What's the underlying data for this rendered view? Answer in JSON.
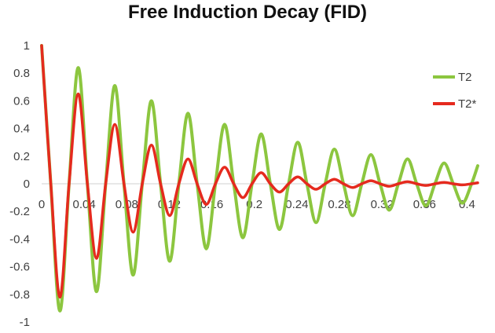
{
  "chart_data": {
    "type": "line",
    "title": "Free Induction Decay (FID)",
    "xlabel": "",
    "ylabel": "",
    "xlim": [
      0,
      0.41
    ],
    "ylim": [
      -1,
      1
    ],
    "x_ticks": [
      "0",
      "0.04",
      "0.08",
      "0.12",
      "0.16",
      "0.2",
      "0.24",
      "0.28",
      "0.32",
      "0.36",
      "0.4"
    ],
    "y_ticks": [
      "1",
      "0.8",
      "0.6",
      "0.4",
      "0.2",
      "0",
      "-0.2",
      "-0.4",
      "-0.6",
      "-0.8",
      "-1"
    ],
    "grid": false,
    "legend_position": "right",
    "series": [
      {
        "name": "T2",
        "color": "#8cc63f",
        "x": [
          0,
          0.0086,
          0.0172,
          0.0258,
          0.0344,
          0.043,
          0.0516,
          0.0602,
          0.0688,
          0.0774,
          0.086,
          0.0946,
          0.1032,
          0.1118,
          0.1204,
          0.129,
          0.1376,
          0.1462,
          0.1548,
          0.1634,
          0.172,
          0.1806,
          0.1892,
          0.1978,
          0.2064,
          0.215,
          0.2236,
          0.2322,
          0.2408,
          0.2494,
          0.258,
          0.2666,
          0.2752,
          0.2838,
          0.2924,
          0.301,
          0.3096,
          0.3182,
          0.3268,
          0.3354,
          0.344,
          0.3526,
          0.3612,
          0.3698,
          0.3784,
          0.387,
          0.3956,
          0.4042,
          0.41
        ],
        "y": [
          1.0,
          0.0,
          -0.92,
          0.0,
          0.84,
          0.0,
          -0.78,
          0.0,
          0.71,
          0.0,
          -0.66,
          0.0,
          0.6,
          0.0,
          -0.56,
          0.0,
          0.51,
          0.0,
          -0.47,
          0.0,
          0.43,
          0.0,
          -0.39,
          0.0,
          0.36,
          0.0,
          -0.33,
          0.0,
          0.3,
          0.0,
          -0.28,
          0.0,
          0.25,
          0.0,
          -0.23,
          0.0,
          0.21,
          0.0,
          -0.19,
          0.0,
          0.18,
          0.0,
          -0.16,
          0.0,
          0.15,
          0.0,
          -0.14,
          0.0,
          0.13
        ]
      },
      {
        "name": "T2*",
        "color": "#e52a1e",
        "x": [
          0,
          0.0086,
          0.0172,
          0.0258,
          0.0344,
          0.043,
          0.0516,
          0.0602,
          0.0688,
          0.0774,
          0.086,
          0.0946,
          0.1032,
          0.1118,
          0.1204,
          0.129,
          0.1376,
          0.1462,
          0.1548,
          0.1634,
          0.172,
          0.1806,
          0.1892,
          0.1978,
          0.2064,
          0.215,
          0.2236,
          0.2322,
          0.2408,
          0.2494,
          0.258,
          0.2666,
          0.2752,
          0.2838,
          0.2924,
          0.301,
          0.3096,
          0.3182,
          0.3268,
          0.3354,
          0.344,
          0.3526,
          0.3612,
          0.3698,
          0.3784,
          0.387,
          0.3956,
          0.4042,
          0.41
        ],
        "y": [
          1.0,
          0.0,
          -0.82,
          0.0,
          0.65,
          0.0,
          -0.54,
          0.0,
          0.43,
          0.0,
          -0.35,
          0.0,
          0.28,
          0.0,
          -0.23,
          0.0,
          0.18,
          0.0,
          -0.15,
          0.0,
          0.12,
          0.0,
          -0.1,
          0.0,
          0.08,
          0.0,
          -0.06,
          0.0,
          0.05,
          0.0,
          -0.04,
          0.0,
          0.033,
          0.0,
          -0.027,
          0.0,
          0.022,
          0.0,
          -0.018,
          0.0,
          0.015,
          0.0,
          -0.012,
          0.0,
          0.01,
          0.0,
          -0.008,
          0.0,
          0.007
        ]
      }
    ]
  }
}
